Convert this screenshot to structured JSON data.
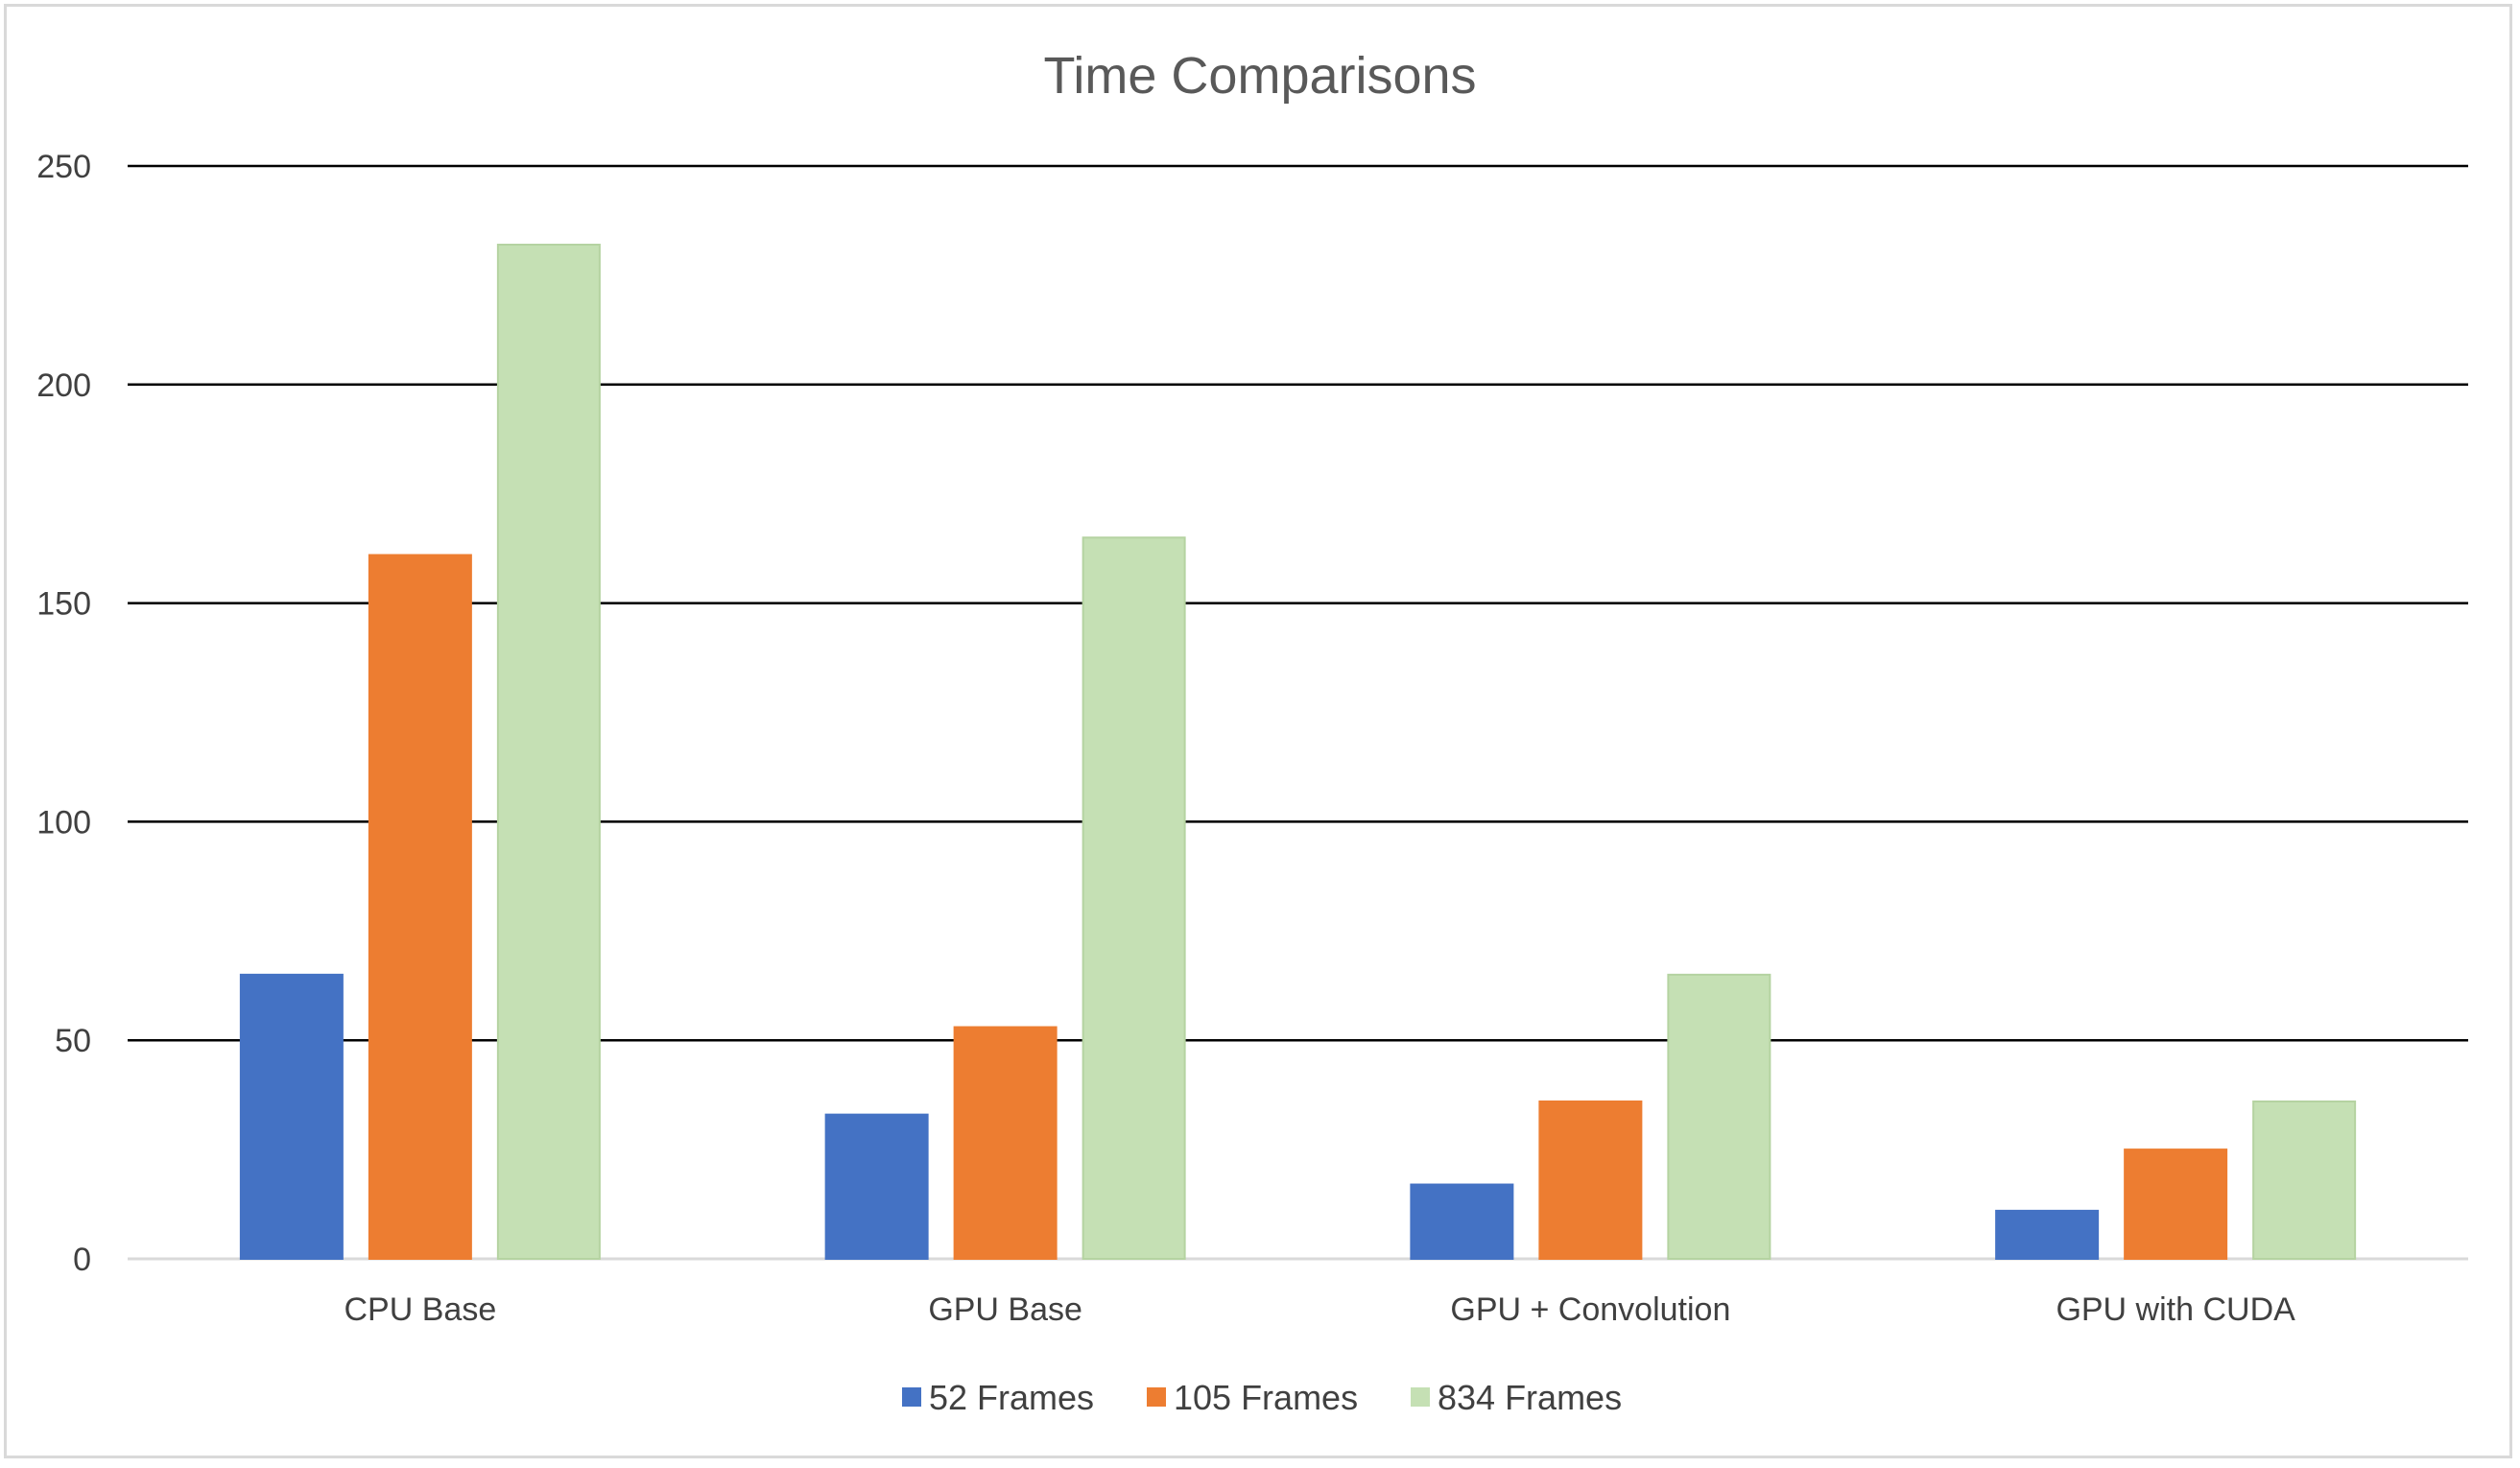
{
  "chart_data": {
    "type": "bar",
    "title": "Time Comparisons",
    "xlabel": "",
    "ylabel": "",
    "categories": [
      "CPU Base",
      "GPU Base",
      "GPU + Convolution",
      "GPU with CUDA"
    ],
    "series": [
      {
        "name": "52 Frames",
        "color": "#4472c4",
        "values": [
          65,
          33,
          17,
          11
        ]
      },
      {
        "name": "105 Frames",
        "color": "#ed7d31",
        "values": [
          161,
          53,
          36,
          25
        ]
      },
      {
        "name": "834 Frames",
        "color": "#c5e0b4",
        "values": [
          232,
          165,
          65,
          36
        ]
      }
    ],
    "ylim": [
      0,
      250
    ],
    "yticks": [
      "0",
      "50",
      "100",
      "150",
      "200",
      "250"
    ],
    "grid": true,
    "legend_position": "bottom"
  }
}
